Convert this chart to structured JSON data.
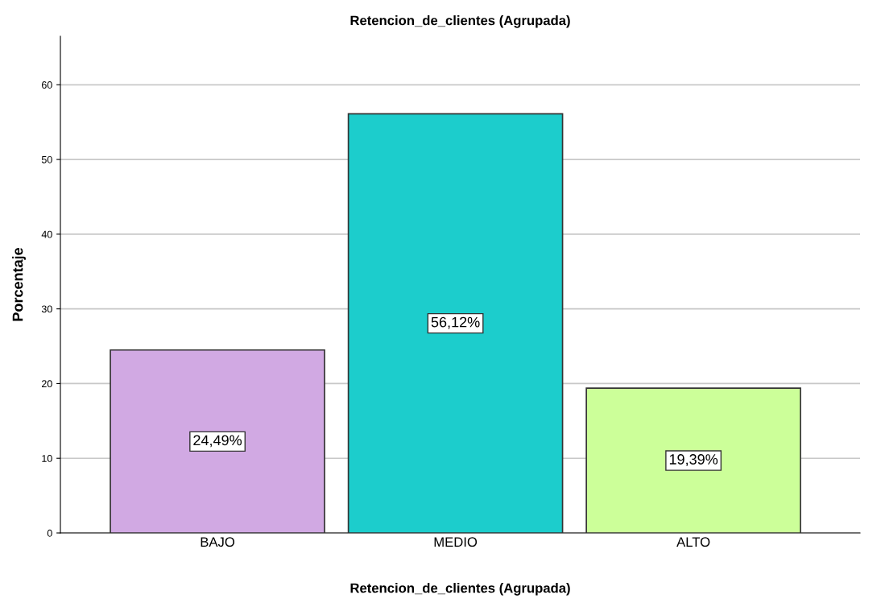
{
  "chart_data": {
    "type": "bar",
    "title": "Retencion_de_clientes (Agrupada)",
    "xlabel": "Retencion_de_clientes (Agrupada)",
    "ylabel": "Porcentaje",
    "categories": [
      "BAJO",
      "MEDIO",
      "ALTO"
    ],
    "values": [
      24.49,
      56.12,
      19.39
    ],
    "value_labels": [
      "24,49%",
      "56,12%",
      "19,39%"
    ],
    "colors": [
      "#d1a9e3",
      "#1ccdcc",
      "#ccff99"
    ],
    "ylim": [
      0,
      66.5
    ],
    "yticks": [
      0,
      10,
      20,
      30,
      40,
      50,
      60
    ],
    "grid": "y"
  }
}
